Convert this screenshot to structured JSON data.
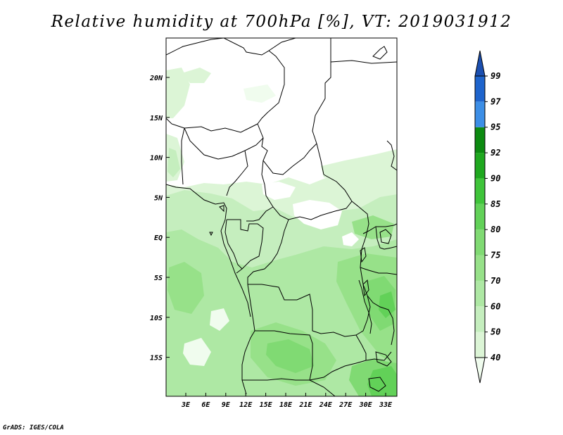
{
  "title": "Relative humidity at 700hPa [%], VT: 2019031912",
  "credit": "GrADS: IGES/COLA",
  "map": {
    "lat_ticks": [
      "20N",
      "15N",
      "10N",
      "5N",
      "EQ",
      "5S",
      "10S",
      "15S"
    ],
    "lon_ticks": [
      "3E",
      "6E",
      "9E",
      "12E",
      "15E",
      "18E",
      "21E",
      "24E",
      "27E",
      "30E",
      "33E"
    ]
  },
  "colorbar": {
    "levels": [
      "40",
      "50",
      "60",
      "70",
      "75",
      "80",
      "85",
      "90",
      "92",
      "95",
      "97",
      "99"
    ],
    "colors": [
      "#f0fcee",
      "#dcf5d6",
      "#c5eebe",
      "#aee8a4",
      "#97e189",
      "#80da73",
      "#62d158",
      "#3fc43a",
      "#1fa81f",
      "#0c8a10",
      "#3c8ee6",
      "#1e64cc",
      "#1b4fb0"
    ]
  }
}
